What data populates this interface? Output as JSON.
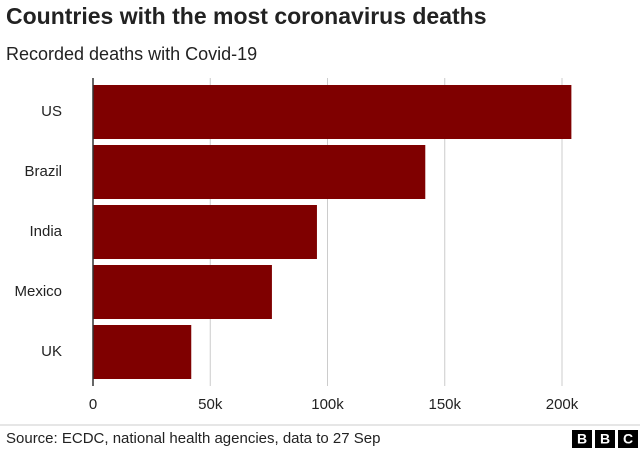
{
  "chart_data": {
    "type": "bar",
    "orientation": "horizontal",
    "title": "Countries with the most coronavirus deaths",
    "subtitle": "Recorded deaths with Covid-19",
    "categories": [
      "US",
      "Brazil",
      "India",
      "Mexico",
      "UK"
    ],
    "values": [
      204000,
      141700,
      95500,
      76300,
      41900
    ],
    "color": "#7f0000",
    "xlim": [
      0,
      210000
    ],
    "xticks": [
      0,
      {
        "value": 50000,
        "label": "50k"
      },
      {
        "value": 100000,
        "label": "100k"
      },
      {
        "value": 150000,
        "label": "150k"
      },
      {
        "value": 200000,
        "label": "200k"
      }
    ],
    "grid": true,
    "source": "Source: ECDC, national health agencies, data to 27 Sep",
    "logo": [
      "B",
      "B",
      "C"
    ]
  }
}
